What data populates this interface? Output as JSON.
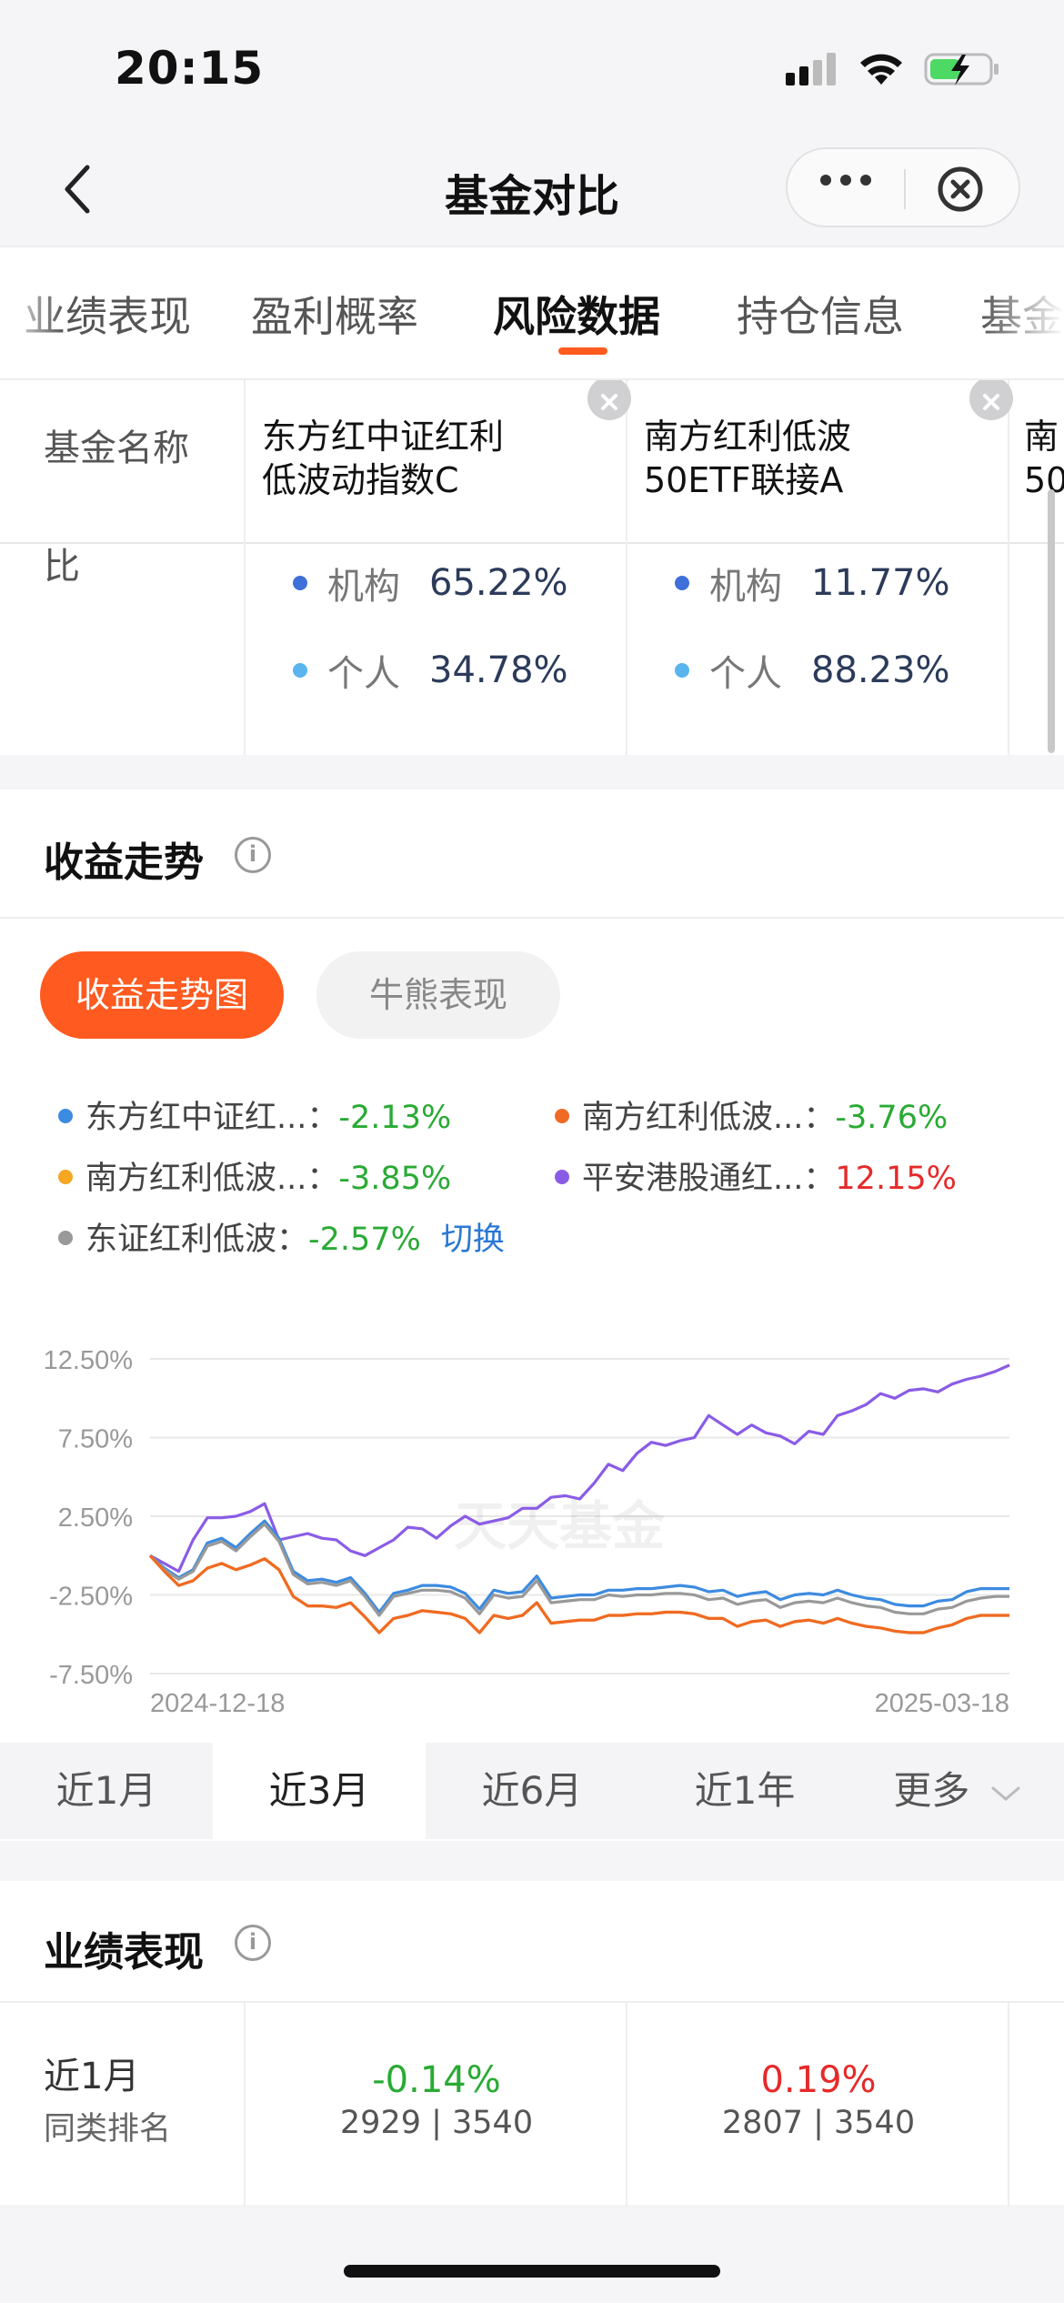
{
  "status": {
    "time": "20:15"
  },
  "nav": {
    "title": "基金对比"
  },
  "tabs": [
    {
      "label": "业绩表现"
    },
    {
      "label": "盈利概率"
    },
    {
      "label": "风险数据"
    },
    {
      "label": "持仓信息"
    },
    {
      "label": "基金"
    }
  ],
  "fund_table": {
    "name_label": "基金名称",
    "holder_label": "比",
    "funds": [
      {
        "name_line1": "东方红中证红利",
        "name_line2": "低波动指数C",
        "inst_label": "机构",
        "inst_value": "65.22%",
        "indiv_label": "个人",
        "indiv_value": "34.78%"
      },
      {
        "name_line1": "南方红利低波",
        "name_line2": "50ETF联接A",
        "inst_label": "机构",
        "inst_value": "11.77%",
        "indiv_label": "个人",
        "indiv_value": "88.23%"
      },
      {
        "name_line1": "南",
        "name_line2": "50",
        "inst_label": "",
        "inst_value": "",
        "indiv_label": "",
        "indiv_value": ""
      }
    ]
  },
  "trend": {
    "title": "收益走势",
    "pill_active": "收益走势图",
    "pill_inactive": "牛熊表现",
    "legend": [
      {
        "name": "东方红中证红...",
        "value": "-2.13%",
        "color": "#3d8be0"
      },
      {
        "name": "南方红利低波...",
        "value": "-3.76%",
        "color": "#f06a24"
      },
      {
        "name": "南方红利低波...",
        "value": "-3.85%",
        "color": "#f5a623"
      },
      {
        "name": "平安港股通红...",
        "value": "12.15%",
        "color": "#8a5ce6"
      },
      {
        "name": "东证红利低波",
        "value": "-2.57%",
        "color": "#999999"
      }
    ],
    "switch_label": "切换",
    "watermark": "天天基金"
  },
  "chart_data": {
    "type": "line",
    "x_start": "2024-12-18",
    "x_end": "2025-03-18",
    "y_ticks": [
      "12.50%",
      "7.50%",
      "2.50%",
      "-2.50%",
      "-7.50%"
    ],
    "ylim": [
      -7.5,
      12.5
    ],
    "series": [
      {
        "name": "平安港股通红...",
        "color": "#8a5ce6",
        "values": [
          0,
          -0.5,
          -1,
          1,
          2.4,
          2.4,
          2.5,
          2.8,
          3.3,
          1,
          1.2,
          1.4,
          1.1,
          1,
          0.3,
          0,
          0.5,
          1,
          1.8,
          1.7,
          1.1,
          1.9,
          2.5,
          2,
          2.2,
          2.4,
          3,
          3,
          3.7,
          3.8,
          3.6,
          4.6,
          5.8,
          5.4,
          6.5,
          7.2,
          7,
          7.3,
          7.5,
          8.9,
          8.3,
          7.7,
          8.3,
          7.8,
          7.6,
          7.1,
          7.9,
          7.7,
          8.9,
          9.2,
          9.6,
          10.3,
          10,
          10.5,
          10.6,
          10.4,
          10.9,
          11.2,
          11.4,
          11.7,
          12.1
        ]
      },
      {
        "name": "东方红中证红...",
        "color": "#3d8be0",
        "values": [
          0,
          -0.8,
          -1.4,
          -0.9,
          0.8,
          1.1,
          0.5,
          1.4,
          2.2,
          1.1,
          -1,
          -1.6,
          -1.5,
          -1.7,
          -1.4,
          -2.4,
          -3.6,
          -2.4,
          -2.2,
          -1.9,
          -1.9,
          -2,
          -2.4,
          -3.4,
          -2.2,
          -2.4,
          -2.3,
          -1.3,
          -2.7,
          -2.6,
          -2.5,
          -2.5,
          -2.2,
          -2.2,
          -2.1,
          -2.1,
          -2,
          -1.9,
          -2,
          -2.3,
          -2.2,
          -2.6,
          -2.4,
          -2.3,
          -2.8,
          -2.5,
          -2.4,
          -2.5,
          -2.2,
          -2.5,
          -2.7,
          -2.8,
          -3.1,
          -3.2,
          -3.2,
          -2.9,
          -2.8,
          -2.3,
          -2.1,
          -2.1,
          -2.1
        ]
      },
      {
        "name": "东证红利低波",
        "color": "#999999",
        "values": [
          0,
          -0.9,
          -1.5,
          -1,
          0.6,
          0.9,
          0.3,
          1.2,
          2,
          0.9,
          -1.2,
          -1.8,
          -1.7,
          -1.9,
          -1.6,
          -2.6,
          -3.8,
          -2.6,
          -2.4,
          -2.2,
          -2.2,
          -2.3,
          -2.7,
          -3.7,
          -2.5,
          -2.7,
          -2.6,
          -1.6,
          -3,
          -2.9,
          -2.8,
          -2.8,
          -2.5,
          -2.6,
          -2.5,
          -2.5,
          -2.4,
          -2.4,
          -2.5,
          -2.8,
          -2.7,
          -3.1,
          -2.9,
          -2.8,
          -3.3,
          -3,
          -2.9,
          -3,
          -2.7,
          -3,
          -3.2,
          -3.3,
          -3.6,
          -3.7,
          -3.7,
          -3.4,
          -3.3,
          -2.9,
          -2.7,
          -2.6,
          -2.6
        ]
      },
      {
        "name": "南方红利低波...",
        "color": "#f5a623",
        "values": [
          0,
          -1,
          -1.9,
          -1.6,
          -0.8,
          -0.5,
          -0.9,
          -0.6,
          -0.2,
          -0.9,
          -2.6,
          -3.2,
          -3.2,
          -3.3,
          -3,
          -3.9,
          -4.9,
          -4,
          -3.8,
          -3.5,
          -3.6,
          -3.7,
          -4,
          -4.9,
          -3.8,
          -4,
          -3.8,
          -3,
          -4.3,
          -4.2,
          -4.1,
          -4.1,
          -3.8,
          -3.8,
          -3.7,
          -3.7,
          -3.6,
          -3.6,
          -3.7,
          -4,
          -4,
          -4.5,
          -4.2,
          -4.1,
          -4.5,
          -4.2,
          -4.1,
          -4.3,
          -4,
          -4.3,
          -4.5,
          -4.6,
          -4.8,
          -4.9,
          -4.9,
          -4.6,
          -4.4,
          -4,
          -3.8,
          -3.8,
          -3.8
        ]
      },
      {
        "name": "南方红利低波...",
        "color": "#f06a24",
        "values": [
          0,
          -1,
          -1.9,
          -1.6,
          -0.8,
          -0.5,
          -0.9,
          -0.6,
          -0.2,
          -0.9,
          -2.6,
          -3.2,
          -3.2,
          -3.3,
          -3,
          -3.9,
          -4.9,
          -4,
          -3.8,
          -3.5,
          -3.6,
          -3.7,
          -4,
          -4.9,
          -3.8,
          -4,
          -3.8,
          -3,
          -4.3,
          -4.2,
          -4.1,
          -4.1,
          -3.8,
          -3.8,
          -3.7,
          -3.7,
          -3.6,
          -3.6,
          -3.7,
          -4,
          -4,
          -4.5,
          -4.2,
          -4.1,
          -4.5,
          -4.2,
          -4.1,
          -4.3,
          -4,
          -4.3,
          -4.5,
          -4.6,
          -4.8,
          -4.9,
          -4.9,
          -4.6,
          -4.4,
          -4,
          -3.8,
          -3.8,
          -3.8
        ]
      }
    ]
  },
  "periods": [
    {
      "label": "近1月"
    },
    {
      "label": "近3月",
      "active": true
    },
    {
      "label": "近6月"
    },
    {
      "label": "近1年"
    },
    {
      "label": "更多"
    }
  ],
  "performance": {
    "title": "业绩表现",
    "row_label": "近1月",
    "row_sub": "同类排名",
    "cells": [
      {
        "value": "-0.14%",
        "rank": "2929 | 3540"
      },
      {
        "value": "0.19%",
        "rank": "2807 | 3540"
      }
    ]
  }
}
